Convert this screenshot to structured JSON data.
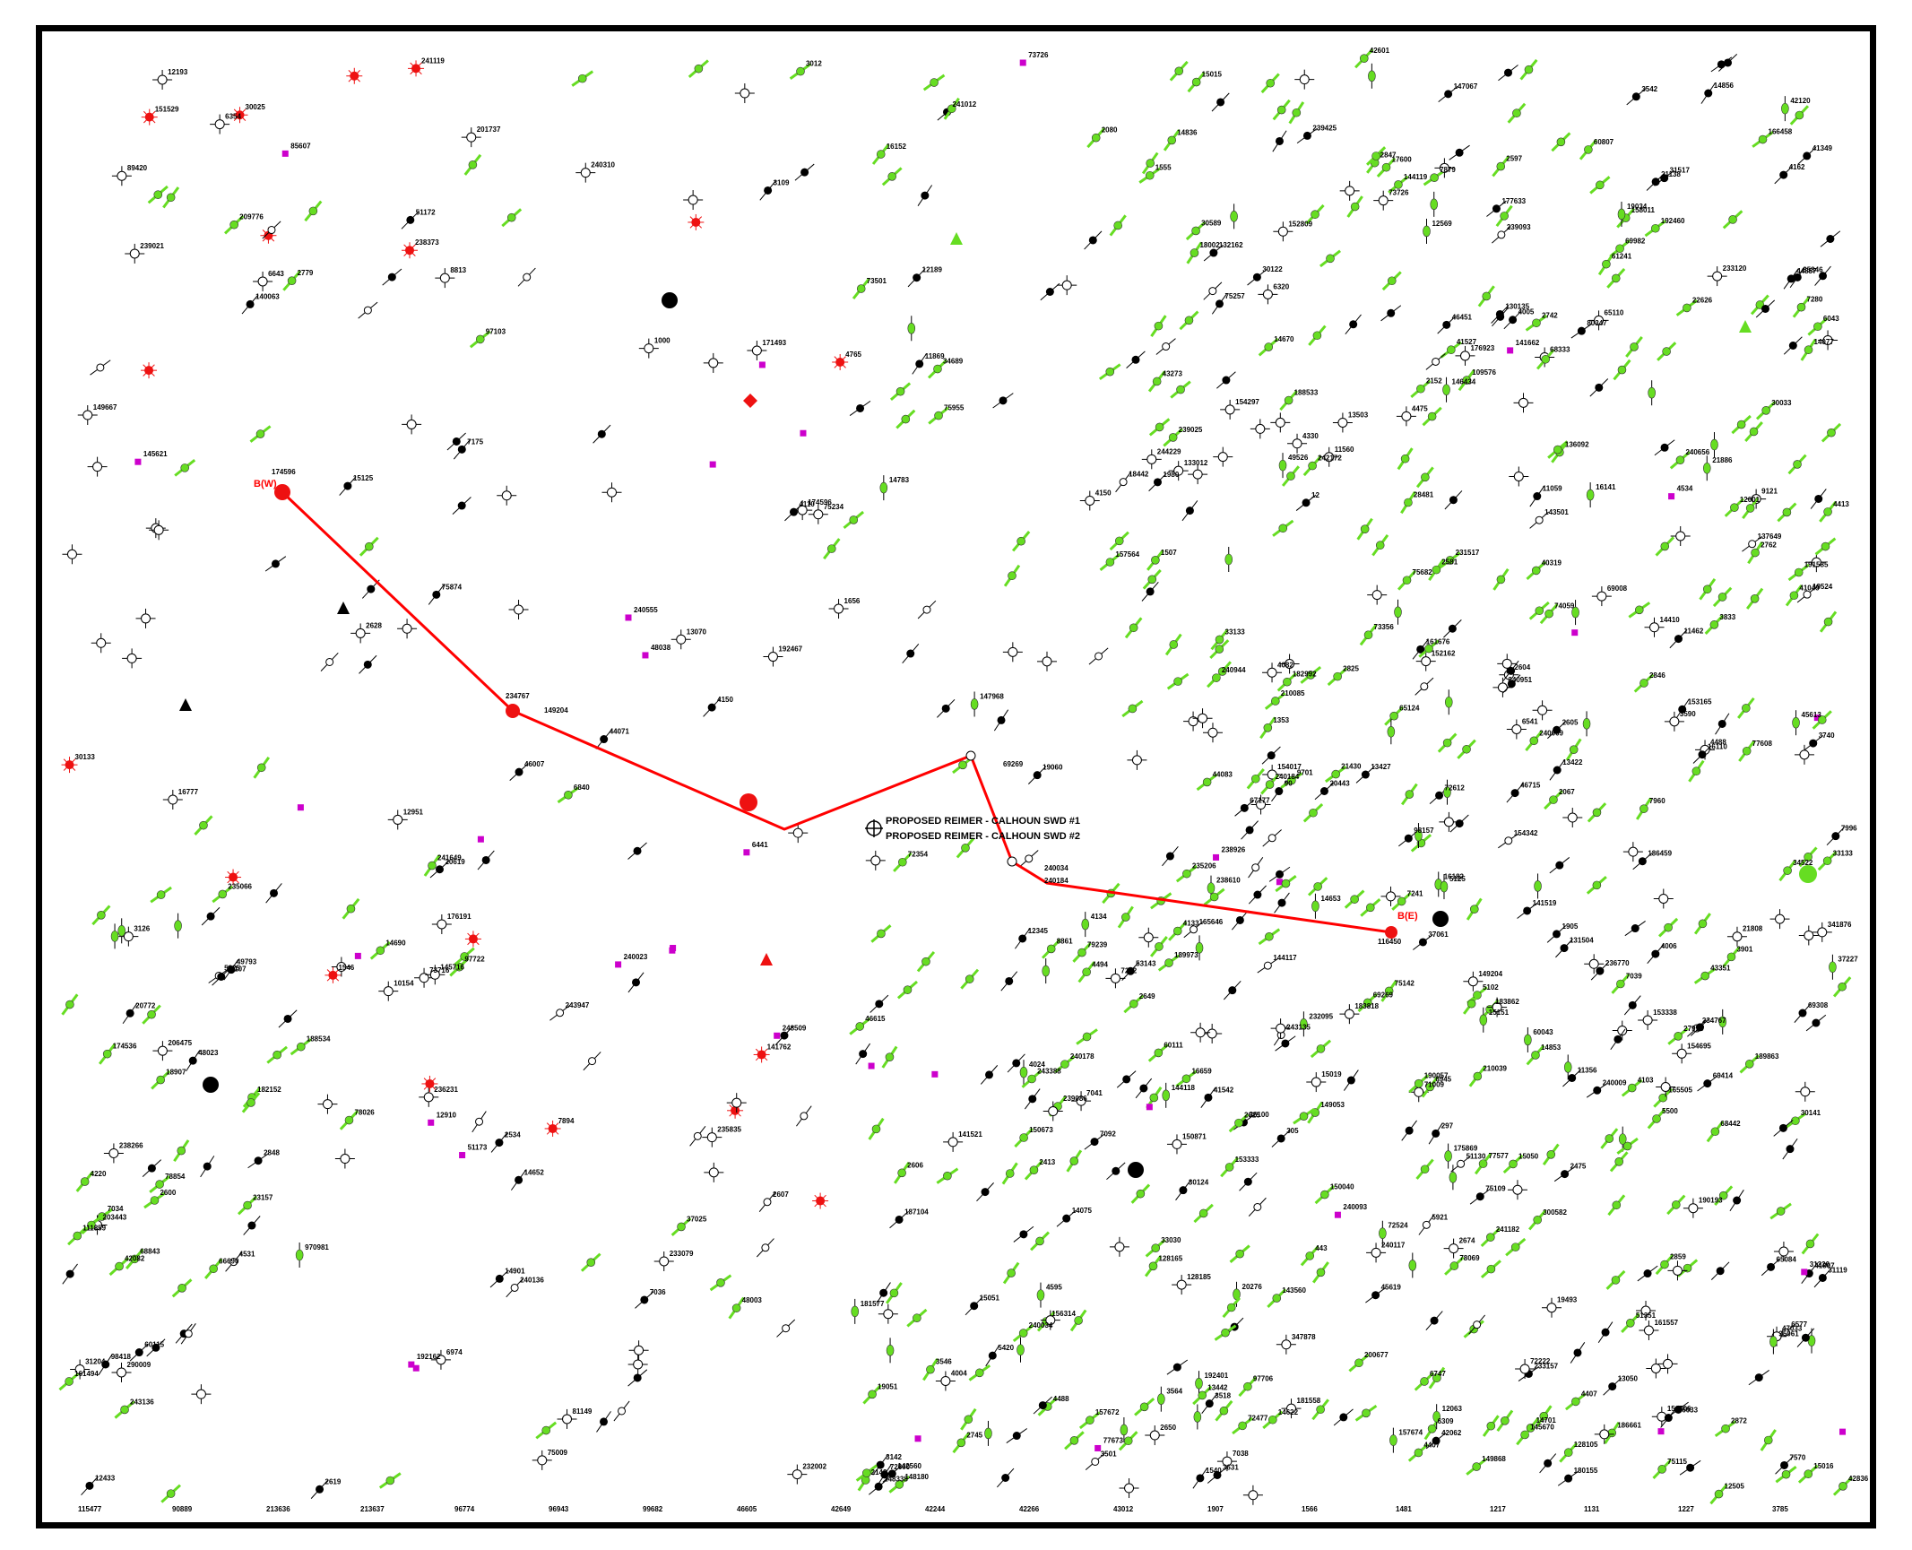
{
  "map": {
    "colors": {
      "section_line": "#ff0000",
      "active_green": "#66dd22",
      "plugged_black": "#000000",
      "dry_hole": "#000000",
      "permit_magenta": "#cc00cc",
      "red_symbol": "#ee1111",
      "blue_symbol": "#6699cc"
    },
    "section_labels": {
      "west": "B(W)",
      "east": "B(E)"
    },
    "proposed_wells": [
      {
        "label": "PROPOSED REIMER - CALHOUN SWD #1"
      },
      {
        "label": "PROPOSED REIMER - CALHOUN SWD #2"
      }
    ],
    "section_point_labels": [
      "174596",
      "234767",
      "149204",
      "69269",
      "240034",
      "240184",
      "116450"
    ],
    "well_labels": [
      "161494",
      "98157",
      "239425",
      "239093",
      "238610",
      "233079",
      "239086",
      "192162",
      "97706",
      "236770",
      "181558",
      "157564",
      "158011",
      "97722",
      "161557",
      "149667",
      "188533",
      "192460",
      "192401",
      "34522",
      "20619",
      "21430",
      "188534",
      "152162",
      "186459",
      "37227",
      "132162",
      "77608",
      "67177",
      "235835",
      "236231",
      "233157",
      "238266",
      "239021",
      "238373",
      "148338",
      "192467",
      "85846",
      "176191",
      "238926",
      "174596",
      "175869",
      "183862",
      "183818",
      "180155",
      "191585",
      "176923",
      "190193",
      "181577",
      "182992",
      "174536",
      "189863",
      "203443",
      "149053",
      "43273",
      "189973",
      "206475",
      "177633",
      "200677",
      "166458",
      "186661",
      "72354",
      "201737",
      "187104",
      "42062",
      "240944",
      "85607",
      "73716",
      "19493",
      "12433",
      "4475",
      "14783",
      "154017",
      "4407",
      "7036",
      "6541",
      "97103",
      "128185",
      "150673",
      "4488",
      "4494",
      "7039",
      "2779",
      "49793",
      "136092",
      "7092",
      "152809",
      "77673",
      "165505",
      "46451",
      "9121",
      "60111",
      "41807",
      "235206",
      "7038",
      "79239",
      "78069",
      "75234",
      "156706",
      "33133",
      "42082",
      "7175",
      "150871",
      "6309",
      "3740",
      "150040",
      "144119",
      "144117",
      "144118",
      "142560",
      "140063",
      "7996",
      "4765",
      "970981",
      "153338",
      "1353",
      "16777",
      "154297",
      "143560",
      "156314",
      "30141",
      "69414",
      "297",
      "4595",
      "75682",
      "240555",
      "241182",
      "18002",
      "243947",
      "242172",
      "241119",
      "243136",
      "243135",
      "1000",
      "44857",
      "234767",
      "149204",
      "73726",
      "240117",
      "12951",
      "14075",
      "74059",
      "89420",
      "14670",
      "6577",
      "8861",
      "44083",
      "14077",
      "46615",
      "68843",
      "145716",
      "98418",
      "4006",
      "145670",
      "128165",
      "69269",
      "69982",
      "72477",
      "131504",
      "75142",
      "72222",
      "305",
      "14653",
      "75874",
      "73726",
      "73356",
      "72600",
      "81149",
      "232002",
      "16659",
      "42601",
      "72612",
      "143501",
      "72524",
      "78026",
      "20772",
      "443",
      "80347",
      "240136",
      "241012",
      "69008",
      "69308",
      "240034",
      "240184",
      "141521",
      "11462",
      "153165",
      "1656",
      "3564",
      "46007",
      "41349",
      "341876",
      "347878",
      "48023",
      "15015",
      "4005",
      "43351",
      "23157",
      "4024",
      "75109",
      "11560",
      "18442",
      "14701",
      "14856",
      "210039",
      "42836",
      "161676",
      "3542",
      "3546",
      "44071",
      "13070",
      "7570",
      "165646",
      "182152",
      "12063",
      "48038",
      "13050",
      "141662",
      "75009",
      "141762",
      "78854",
      "73501",
      "239025",
      "209776",
      "51172",
      "68442",
      "68333",
      "66690",
      "77577",
      "65084",
      "240009",
      "240310",
      "75115",
      "34689",
      "340951",
      "244229",
      "243388",
      "31220",
      "4534",
      "1540",
      "30133",
      "300582",
      "40319",
      "30124",
      "47033",
      "33030",
      "19524",
      "1905",
      "1507",
      "30122",
      "109576",
      "11356",
      "4407",
      "210085",
      "48003",
      "46715",
      "45619",
      "51351",
      "20276",
      "20443",
      "19051",
      "30033",
      "19034",
      "19060",
      "13503",
      "31119",
      "15016",
      "16141",
      "51130",
      "21138",
      "153333",
      "30589",
      "17600",
      "27995",
      "14410",
      "21808",
      "60807",
      "111859",
      "3518",
      "2606",
      "2534",
      "2604",
      "3590",
      "2846",
      "7262",
      "2649",
      "7879",
      "4488",
      "4082",
      "71009",
      "6974",
      "22626",
      "7894",
      "5921",
      "2067",
      "5500",
      "6945",
      "12",
      "6441",
      "3501",
      "21886",
      "4103",
      "3631",
      "2597",
      "6643",
      "12193",
      "11869",
      "12189",
      "3833",
      "2581",
      "2650",
      "8813",
      "5825",
      "290009",
      "30025",
      "14901",
      "12910",
      "128105",
      "90",
      "141519",
      "154695",
      "157672",
      "3901",
      "186033",
      "1546",
      "157674",
      "148180",
      "233120",
      "235066",
      "171493",
      "240178",
      "240656",
      "6043",
      "61241",
      "28481",
      "231517",
      "53143",
      "4330",
      "2413",
      "6354",
      "7041",
      "6840",
      "45613",
      "16152",
      "12345",
      "3126",
      "9701",
      "4220",
      "1555",
      "6747",
      "65110",
      "36100",
      "13427",
      "3142",
      "14836",
      "42120",
      "15151",
      "12001",
      "65124",
      "232095",
      "2475",
      "240093",
      "240023",
      "248509",
      "240009",
      "37061",
      "49526",
      "31204",
      "60043",
      "35061",
      "16182",
      "37025",
      "5125",
      "13442",
      "11059",
      "10154",
      "33133",
      "14652",
      "60115",
      "16110",
      "3012",
      "7241",
      "4413",
      "4150",
      "41049",
      "31517",
      "15125",
      "145621",
      "4150",
      "7960",
      "12505",
      "4110",
      "41542",
      "31107",
      "15050",
      "15019",
      "190057",
      "14690",
      "130135",
      "146434",
      "137649",
      "14853",
      "4004",
      "7280",
      "133012",
      "5420",
      "13422",
      "154342",
      "147067",
      "149868",
      "4531",
      "147968",
      "151529",
      "5102",
      "4134",
      "4162",
      "2848",
      "2872",
      "3109",
      "2847",
      "2859",
      "241649",
      "14622",
      "4133",
      "15051",
      "12569",
      "18907",
      "2825",
      "7034",
      "51173",
      "6320",
      "2619",
      "41527",
      "75955",
      "75257",
      "2143",
      "1980",
      "2080",
      "2605",
      "2607",
      "2600",
      "2625",
      "2628",
      "2674",
      "2742",
      "2762",
      "2152",
      "2745"
    ],
    "footer_labels": [
      "115477",
      "90889",
      "213636",
      "213637",
      "96774",
      "96943",
      "99682",
      "46605",
      "42649",
      "42244",
      "42266",
      "43012",
      "1907",
      "1566",
      "1481",
      "1217",
      "1131",
      "1227",
      "3785"
    ]
  }
}
